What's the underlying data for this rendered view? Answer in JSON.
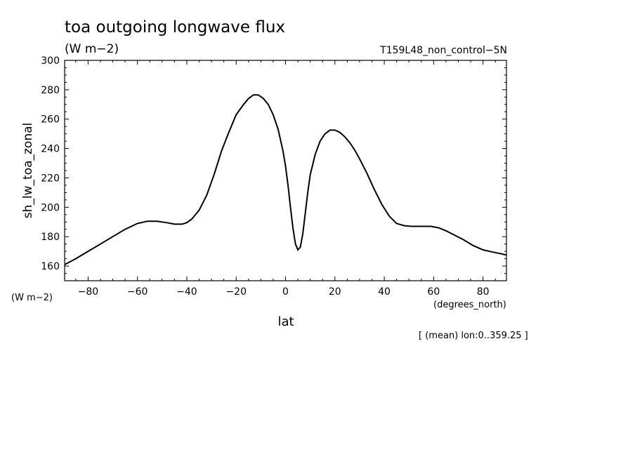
{
  "chart_data": {
    "type": "line",
    "title": "toa outgoing longwave flux",
    "units": "(W m−2)",
    "experiment": "T159L48_non_control−5N",
    "ylabel": "sh_lw_toa_zonal",
    "yunits": "(W m−2)",
    "xlabel": "lat",
    "xunits": "(degrees_north)",
    "footer": "[ (mean) lon:0..359.25 ]",
    "xlim": [
      -89.5,
      89.5
    ],
    "ylim": [
      150,
      300
    ],
    "xticks": [
      -80,
      -60,
      -40,
      -20,
      0,
      20,
      40,
      60,
      80
    ],
    "xtick_labels": [
      "−80",
      "−60",
      "−40",
      "−20",
      "0",
      "20",
      "40",
      "60",
      "80"
    ],
    "yticks": [
      160,
      180,
      200,
      220,
      240,
      260,
      280,
      300
    ],
    "ytick_labels": [
      "160",
      "180",
      "200",
      "220",
      "240",
      "260",
      "280",
      "300"
    ],
    "grid": false,
    "series": [
      {
        "x": [
          -89.5,
          -85,
          -80,
          -75,
          -70,
          -65,
          -60,
          -56,
          -52,
          -48,
          -45,
          -42,
          -40,
          -38,
          -35,
          -32,
          -29,
          -26,
          -23,
          -20,
          -17,
          -15,
          -13,
          -11,
          -9,
          -7,
          -5,
          -3,
          -1,
          0,
          1,
          2,
          3,
          4,
          5,
          6,
          7,
          8,
          9,
          10,
          12,
          14,
          16,
          18,
          20,
          22,
          24,
          26,
          28,
          30,
          33,
          36,
          39,
          42,
          45,
          48,
          51,
          55,
          59,
          62,
          65,
          68,
          72,
          76,
          80,
          84,
          87,
          89.5
        ],
        "y": [
          161,
          165,
          170,
          175,
          180,
          185,
          189,
          190.5,
          190.5,
          189.5,
          188.5,
          188.5,
          189.5,
          192,
          198,
          208,
          222,
          238,
          251,
          263,
          270,
          274,
          276.5,
          276.5,
          274,
          270,
          263,
          253,
          238,
          228,
          215,
          200,
          186,
          175,
          171,
          173,
          182,
          196,
          210,
          222,
          236,
          245,
          250,
          252.5,
          252.5,
          251,
          248,
          244,
          239,
          233,
          223,
          212,
          202,
          194,
          189,
          187.5,
          187,
          187,
          187,
          186,
          184,
          181.5,
          178,
          174,
          171,
          169.5,
          168.5,
          167.5
        ]
      }
    ]
  }
}
